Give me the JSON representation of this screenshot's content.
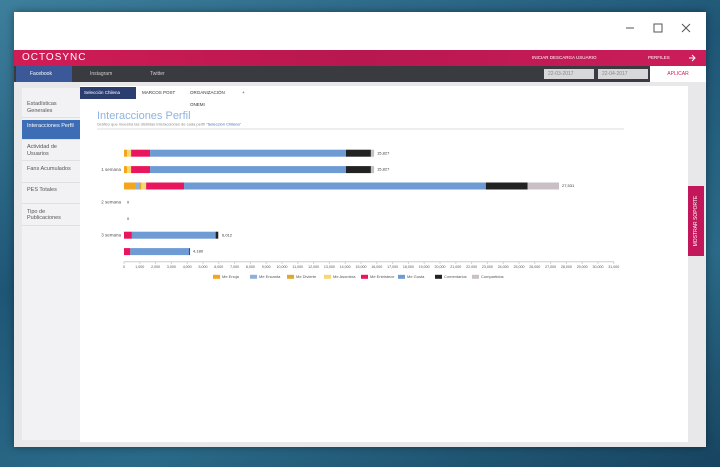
{
  "header": {
    "logo": "OCTOSYNC",
    "user": "INICIAR DESCARGA USUARIO",
    "profiles": "PERFILES"
  },
  "nav": {
    "tabs": [
      "Facebook",
      "Instagram",
      "Twitter"
    ],
    "active": 0,
    "date_from": "22-03-2017",
    "date_to": "22-04-2017",
    "apply": "APLICAR"
  },
  "sidebar": {
    "items": [
      "Estadísticas Generales",
      "Interacciones Perfil",
      "Actividad de Usuarios",
      "Fans Acumulados",
      "PES Totales",
      "Tipo de Publicaciones"
    ],
    "active": 1
  },
  "profile_tabs": {
    "items": [
      "Selección Chilena",
      "MARCOS POST",
      "ORGANIZACIÓN ONEMI",
      "+"
    ],
    "active": 0
  },
  "support_tab": "MOSTRAR SOPORTE",
  "chart_data": {
    "type": "bar",
    "orientation": "horizontal",
    "stacked": true,
    "title": "Interacciones Perfil",
    "subtitle": "Gráfico que muestra las distintas interacciones de cada perfil",
    "subtitle_profile": "\"Selección Chilena\"",
    "categories": [
      null,
      "1 semana",
      null,
      "2 semana",
      null,
      "3 semana",
      null
    ],
    "series": [
      {
        "name": "Me Enoja",
        "color": "#f4a51c",
        "values": [
          200,
          200,
          700,
          0,
          0,
          0,
          0
        ]
      },
      {
        "name": "Me Encanta",
        "color": "#8fb0dc",
        "values": [
          0,
          0,
          250,
          0,
          0,
          0,
          0
        ]
      },
      {
        "name": "Me Divierte",
        "color": "#e0a82e",
        "values": [
          0,
          0,
          150,
          0,
          0,
          0,
          0
        ]
      },
      {
        "name": "Me Asombra",
        "color": "#f7d774",
        "values": [
          250,
          250,
          300,
          0,
          0,
          0,
          0
        ]
      },
      {
        "name": "Me Entristece",
        "color": "#e8175d",
        "values": [
          1200,
          1200,
          2400,
          0,
          0,
          500,
          400
        ]
      },
      {
        "name": "Me Gusta",
        "color": "#6e9bd4",
        "values": [
          12400,
          12400,
          19100,
          0,
          0,
          5300,
          3730
        ]
      },
      {
        "name": "Comentarios",
        "color": "#222222",
        "values": [
          1577,
          1577,
          2650,
          0,
          0,
          150,
          50
        ]
      },
      {
        "name": "Compartidos",
        "color": "#c8c0c4",
        "values": [
          200,
          200,
          1981,
          0,
          0,
          62,
          0
        ]
      }
    ],
    "totals": {
      "values": [
        15827,
        15827,
        27531,
        0,
        0,
        6012,
        4180
      ],
      "value_labels": [
        "15,827",
        "15,827",
        "27,531",
        "0",
        "0",
        "6,012",
        "4,180"
      ]
    },
    "xlim": [
      0,
      31000
    ],
    "xticks": [
      0,
      {
        "value": 1000,
        "label": "1,000"
      },
      {
        "value": 2000,
        "label": "2,000"
      },
      {
        "value": 3000,
        "label": "3,000"
      },
      {
        "value": 4000,
        "label": "4,000"
      },
      {
        "value": 5000,
        "label": "5,000"
      },
      {
        "value": 6000,
        "label": "6,000"
      },
      {
        "value": 7000,
        "label": "7,000"
      },
      {
        "value": 8000,
        "label": "8,000"
      },
      {
        "value": 9000,
        "label": "9,000"
      },
      {
        "value": 10000,
        "label": "10,000"
      },
      {
        "value": 11000,
        "label": "11,000"
      },
      {
        "value": 12000,
        "label": "12,000"
      },
      {
        "value": 13000,
        "label": "13,000"
      },
      {
        "value": 14000,
        "label": "14,000"
      },
      {
        "value": 15000,
        "label": "15,000"
      },
      {
        "value": 16000,
        "label": "16,000"
      },
      {
        "value": 17000,
        "label": "17,000"
      },
      {
        "value": 18000,
        "label": "18,000"
      },
      {
        "value": 19000,
        "label": "19,000"
      },
      {
        "value": 20000,
        "label": "20,000"
      },
      {
        "value": 21000,
        "label": "21,000"
      },
      {
        "value": 22000,
        "label": "22,000"
      },
      {
        "value": 23000,
        "label": "23,000"
      },
      {
        "value": 24000,
        "label": "24,000"
      },
      {
        "value": 25000,
        "label": "25,000"
      },
      {
        "value": 26000,
        "label": "26,000"
      },
      {
        "value": 27000,
        "label": "27,000"
      },
      {
        "value": 28000,
        "label": "28,000"
      },
      {
        "value": 29000,
        "label": "29,000"
      },
      {
        "value": 30000,
        "label": "30,000"
      },
      {
        "value": 31000,
        "label": "31,000"
      }
    ]
  }
}
